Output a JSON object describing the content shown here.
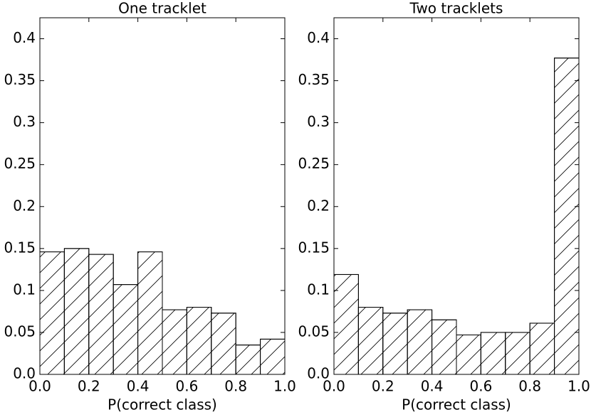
{
  "chart_data": [
    {
      "type": "histogram",
      "title": "One tracklet",
      "xlabel": "P(correct class)",
      "bins": [
        0.0,
        0.1,
        0.2,
        0.3,
        0.4,
        0.5,
        0.6,
        0.7,
        0.8,
        0.9,
        1.0
      ],
      "values": [
        0.146,
        0.15,
        0.143,
        0.107,
        0.146,
        0.077,
        0.08,
        0.073,
        0.035,
        0.042
      ],
      "color": "#ffffff",
      "hatch": "/",
      "xlim": [
        0.0,
        1.0
      ],
      "ylim": [
        0.0,
        0.425
      ],
      "xticks": [
        {
          "value": 0.0,
          "label": "0.0"
        },
        0.2,
        0.4,
        0.6,
        0.8,
        {
          "value": 1.0,
          "label": "1.0"
        }
      ],
      "yticks": [
        {
          "value": 0.0,
          "label": "0.0"
        },
        0.05,
        0.1,
        0.15,
        0.2,
        0.25,
        0.3,
        0.35,
        0.4
      ]
    },
    {
      "type": "histogram",
      "title": "Two tracklets",
      "xlabel": "P(correct class)",
      "bins": [
        0.0,
        0.1,
        0.2,
        0.3,
        0.4,
        0.5,
        0.6,
        0.7,
        0.8,
        0.9,
        1.0
      ],
      "values": [
        0.119,
        0.08,
        0.073,
        0.077,
        0.065,
        0.047,
        0.05,
        0.05,
        0.061,
        0.377
      ],
      "color": "#ffffff",
      "hatch": "/",
      "xlim": [
        0.0,
        1.0
      ],
      "ylim": [
        0.0,
        0.425
      ],
      "xticks": [
        {
          "value": 0.0,
          "label": "0.0"
        },
        0.2,
        0.4,
        0.6,
        0.8,
        {
          "value": 1.0,
          "label": "1.0"
        }
      ],
      "yticks": [
        {
          "value": 0.0,
          "label": "0.0"
        },
        0.05,
        0.1,
        0.15,
        0.2,
        0.25,
        0.3,
        0.35,
        0.4
      ]
    }
  ]
}
